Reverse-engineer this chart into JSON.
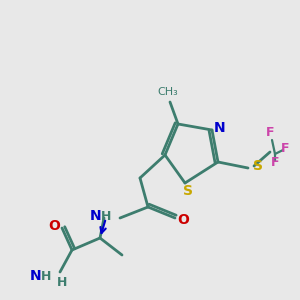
{
  "bg_color": "#e8e8e8",
  "bond_color": "#3d7d6e",
  "bond_lw": 2.0,
  "colors": {
    "S": "#c8a800",
    "N": "#0000cc",
    "O": "#cc0000",
    "F": "#cc44aa",
    "H": "#3d7d6e",
    "C": "#3d7d6e"
  },
  "font_size": 9
}
